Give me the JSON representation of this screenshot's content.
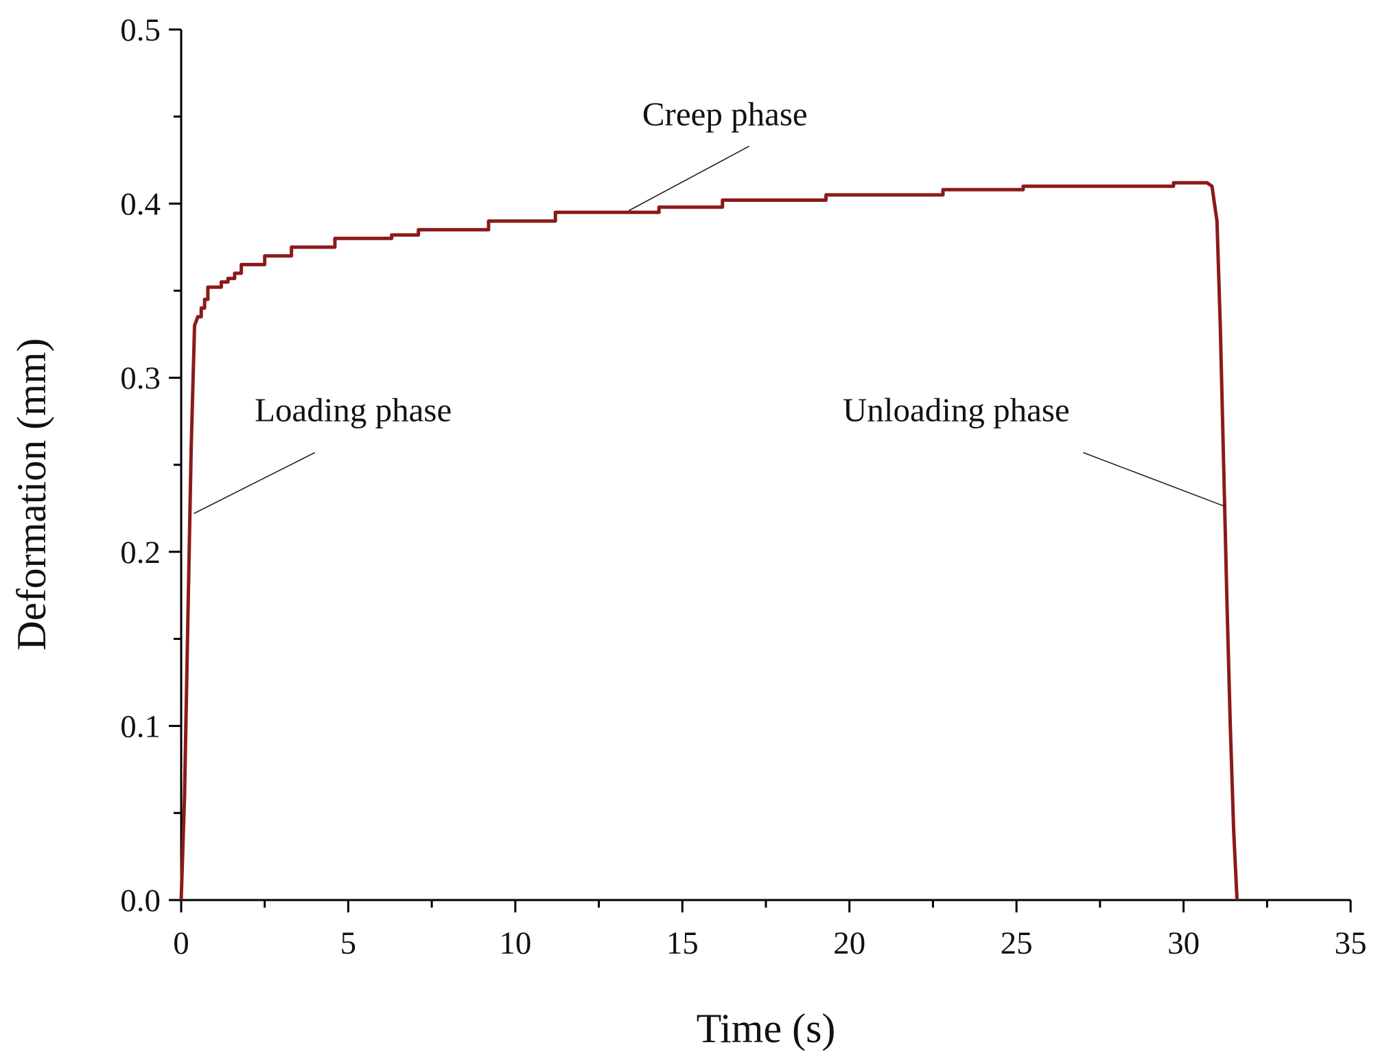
{
  "chart_data": {
    "type": "line",
    "title": "",
    "xlabel": "Time (s)",
    "ylabel": "Deformation (mm)",
    "xlim": [
      0,
      35
    ],
    "ylim": [
      0,
      0.5
    ],
    "x_ticks": [
      "0",
      "5",
      "10",
      "15",
      "20",
      "25",
      "30",
      "35"
    ],
    "y_ticks": [
      "0.0",
      "0.1",
      "0.2",
      "0.3",
      "0.4",
      "0.5"
    ],
    "x_tick_values": [
      0,
      5,
      10,
      15,
      20,
      25,
      30,
      35
    ],
    "y_tick_values": [
      0,
      0.1,
      0.2,
      0.3,
      0.4,
      0.5
    ],
    "grid": false,
    "legend": "none",
    "series": [
      {
        "color": "#8b1a1a",
        "points": [
          [
            0,
            0
          ],
          [
            0.1,
            0.06
          ],
          [
            0.2,
            0.16
          ],
          [
            0.3,
            0.26
          ],
          [
            0.4,
            0.33
          ],
          [
            0.5,
            0.335
          ],
          [
            0.6,
            0.335
          ],
          [
            0.6,
            0.34
          ],
          [
            0.7,
            0.34
          ],
          [
            0.7,
            0.345
          ],
          [
            0.8,
            0.345
          ],
          [
            0.8,
            0.352
          ],
          [
            1.2,
            0.352
          ],
          [
            1.2,
            0.355
          ],
          [
            1.4,
            0.355
          ],
          [
            1.4,
            0.357
          ],
          [
            1.6,
            0.357
          ],
          [
            1.6,
            0.36
          ],
          [
            1.8,
            0.36
          ],
          [
            1.8,
            0.365
          ],
          [
            2.5,
            0.365
          ],
          [
            2.5,
            0.37
          ],
          [
            3.3,
            0.37
          ],
          [
            3.3,
            0.375
          ],
          [
            4.6,
            0.375
          ],
          [
            4.6,
            0.38
          ],
          [
            6.3,
            0.38
          ],
          [
            6.3,
            0.382
          ],
          [
            7.1,
            0.382
          ],
          [
            7.1,
            0.385
          ],
          [
            9.2,
            0.385
          ],
          [
            9.2,
            0.39
          ],
          [
            11.2,
            0.39
          ],
          [
            11.2,
            0.395
          ],
          [
            14.3,
            0.395
          ],
          [
            14.3,
            0.398
          ],
          [
            16.2,
            0.398
          ],
          [
            16.2,
            0.402
          ],
          [
            19.3,
            0.402
          ],
          [
            19.3,
            0.405
          ],
          [
            22.8,
            0.405
          ],
          [
            22.8,
            0.408
          ],
          [
            25.2,
            0.408
          ],
          [
            25.2,
            0.41
          ],
          [
            29.7,
            0.41
          ],
          [
            29.7,
            0.412
          ],
          [
            30.7,
            0.412
          ],
          [
            30.85,
            0.41
          ],
          [
            31.0,
            0.39
          ],
          [
            31.1,
            0.33
          ],
          [
            31.2,
            0.25
          ],
          [
            31.3,
            0.17
          ],
          [
            31.4,
            0.1
          ],
          [
            31.5,
            0.04
          ],
          [
            31.6,
            0
          ]
        ]
      }
    ],
    "annotations": [
      {
        "text": "Creep phase",
        "label_x": 13.8,
        "label_y": 0.445,
        "line_from": [
          17.0,
          0.433
        ],
        "line_to": [
          13.4,
          0.396
        ]
      },
      {
        "text": "Loading phase",
        "label_x": 2.2,
        "label_y": 0.275,
        "line_from": [
          4.0,
          0.257
        ],
        "line_to": [
          0.38,
          0.222
        ]
      },
      {
        "text": "Unloading phase",
        "label_x": 19.8,
        "label_y": 0.275,
        "line_from": [
          27.0,
          0.257
        ],
        "line_to": [
          31.25,
          0.226
        ]
      }
    ]
  }
}
